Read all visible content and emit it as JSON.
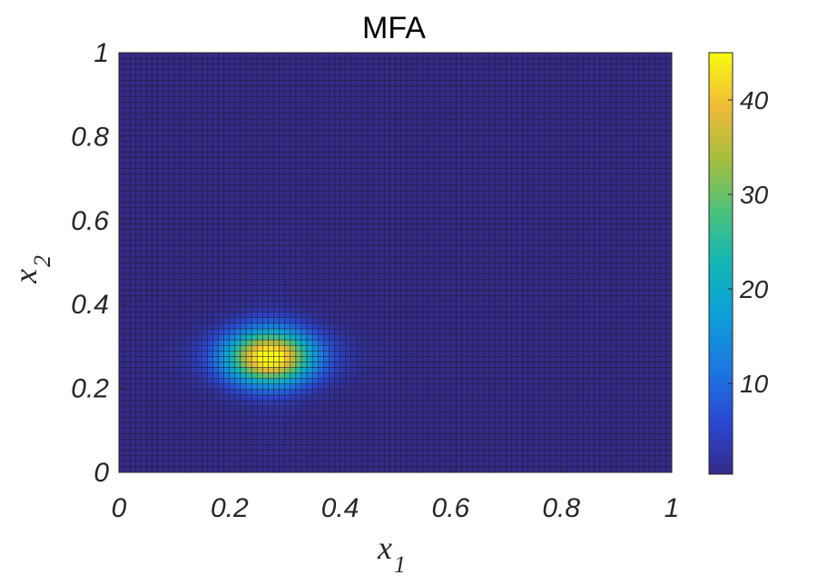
{
  "chart_data": {
    "type": "heatmap",
    "title": "MFA",
    "xlabel": {
      "main": "x",
      "sub": "1"
    },
    "ylabel": {
      "main": "x",
      "sub": "2"
    },
    "xlim": [
      0,
      1
    ],
    "ylim": [
      0,
      1
    ],
    "x_ticks": [
      "0",
      "0.2",
      "0.4",
      "0.6",
      "0.8",
      "1"
    ],
    "y_ticks": [
      "0",
      "0.2",
      "0.4",
      "0.6",
      "0.8",
      "1"
    ],
    "grid": {
      "nx": 100,
      "ny": 76,
      "x_range": [
        0.01,
        0.99
      ],
      "y_range": [
        0.0,
        0.995
      ]
    },
    "field": {
      "description_values": "peak located near the values below; low elsewhere",
      "peak_x": 0.275,
      "peak_y": 0.27,
      "peak_value": 45,
      "base_value": 0.4
    },
    "colorbar": {
      "range": [
        0.4,
        45
      ],
      "ticks": [
        "10",
        "20",
        "30",
        "40"
      ],
      "colormap": "parula"
    },
    "colors": {
      "edge": "#1a1a2e",
      "axis": "#262626"
    }
  }
}
